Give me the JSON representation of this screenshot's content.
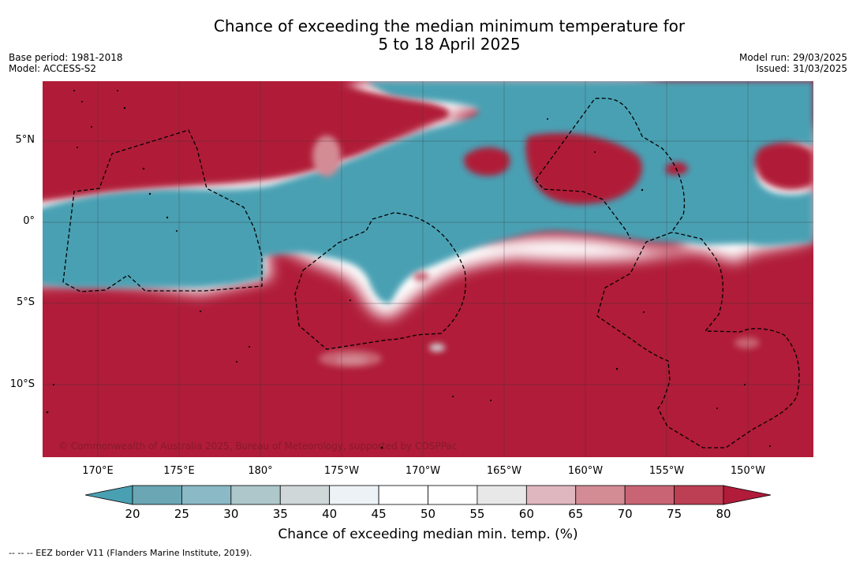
{
  "title_line1": "Chance of exceeding the median minimum temperature for",
  "title_line2": "5 to 18 April 2025",
  "base_period": "Base period: 1981-2018",
  "model": "Model: ACCESS-S2",
  "model_run": "Model run: 29/03/2025",
  "issued": "Issued: 31/03/2025",
  "copyright": "© Commonwealth of Australia 2025, Bureau of Meteorology, supported by COSPPac",
  "lat_labels": [
    "5°N",
    "0°",
    "5°S",
    "10°S"
  ],
  "lon_labels": [
    "170°E",
    "175°E",
    "180°",
    "175°W",
    "170°W",
    "165°W",
    "160°W",
    "155°W",
    "150°W"
  ],
  "colorbar": {
    "ticks": [
      "20",
      "25",
      "30",
      "35",
      "40",
      "45",
      "50",
      "55",
      "60",
      "65",
      "70",
      "75",
      "80"
    ],
    "colors": [
      "#6aa6b4",
      "#8bb9c6",
      "#adc7cb",
      "#d0d7d9",
      "#edf2f6",
      "#ffffff",
      "#ffffff",
      "#e8e8e8",
      "#dfb7be",
      "#d38b94",
      "#c86473",
      "#bc3f53"
    ],
    "low_color": "#4aa0b3",
    "high_color": "#b01c39",
    "title": "Chance of exceeding median min. temp. (%)"
  },
  "footer": "-- -- -- EEZ border V11 (Flanders Marine Institute, 2019)."
}
